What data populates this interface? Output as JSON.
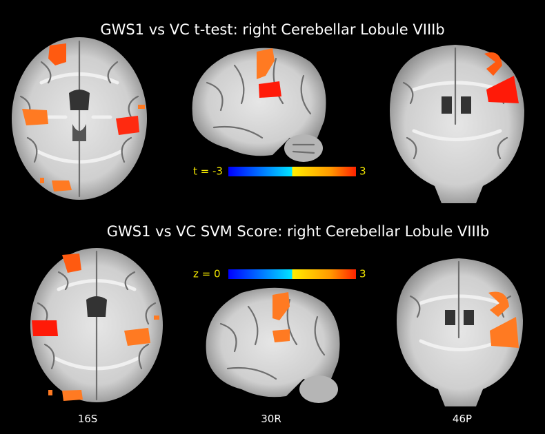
{
  "top_panel": {
    "title": "GWS1 vs VC t-test: right Cerebellar  Lobule VIIIb",
    "colorbar": {
      "min_label": "t = -3",
      "max_label": "3"
    }
  },
  "bottom_panel": {
    "title": "GWS1 vs VC SVM Score: right Cerebellar Lobule VIIIb",
    "colorbar": {
      "min_label": "z = 0",
      "max_label": "3"
    }
  },
  "slice_labels": [
    "16S",
    "30R",
    "46P"
  ]
}
